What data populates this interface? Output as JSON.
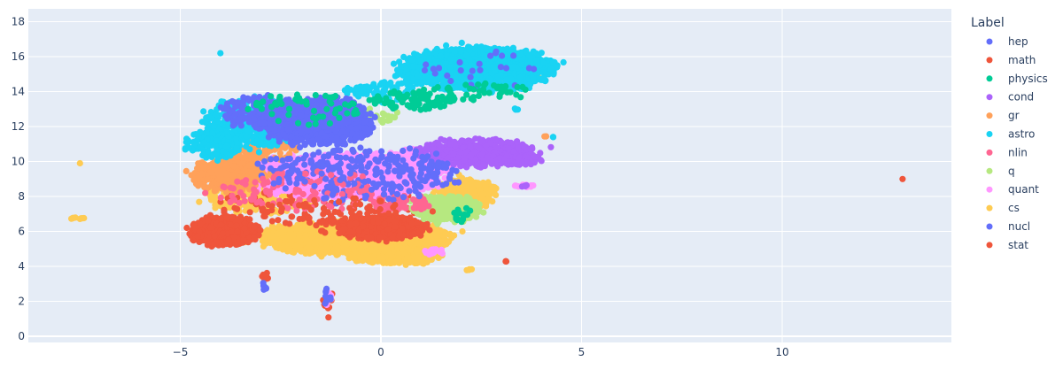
{
  "chart_data": {
    "type": "scatter",
    "title": "",
    "xlabel": "",
    "ylabel": "",
    "xlim": [
      -9.2,
      14.3
    ],
    "ylim": [
      -0.4,
      18.7
    ],
    "x_ticks": [
      -5,
      0,
      5,
      10
    ],
    "x_tick_labels": [
      "−5",
      "0",
      "5",
      "10"
    ],
    "y_ticks": [
      0,
      2,
      4,
      6,
      8,
      10,
      12,
      14,
      16,
      18
    ],
    "y_tick_labels": [
      "0",
      "2",
      "4",
      "6",
      "8",
      "10",
      "12",
      "14",
      "16",
      "18"
    ],
    "grid": true,
    "background": "#E5ECF6",
    "legend_title": "Label",
    "legend_position": "right",
    "series": [
      {
        "name": "hep",
        "color": "#636EFA",
        "clusters": [
          {
            "cx": -1.6,
            "cy": 12.3,
            "rx": 1.5,
            "ry": 1.4,
            "n": 900
          },
          {
            "cx": -3.2,
            "cy": 12.8,
            "rx": 0.8,
            "ry": 1.0,
            "n": 120
          },
          {
            "cx": -0.5,
            "cy": 9.5,
            "rx": 2.6,
            "ry": 1.4,
            "n": 220
          },
          {
            "cx": 2.5,
            "cy": 15.2,
            "rx": 1.6,
            "ry": 1.2,
            "n": 25
          },
          {
            "cx": -2.9,
            "cy": 3.0,
            "rx": 0.08,
            "ry": 0.4,
            "n": 6
          },
          {
            "cx": -1.3,
            "cy": 2.3,
            "rx": 0.15,
            "ry": 0.6,
            "n": 8
          }
        ]
      },
      {
        "name": "math",
        "color": "#EF553B",
        "clusters": [
          {
            "cx": -3.9,
            "cy": 6.0,
            "rx": 0.9,
            "ry": 0.9,
            "n": 500
          },
          {
            "cx": 0.0,
            "cy": 6.2,
            "rx": 1.1,
            "ry": 0.7,
            "n": 600
          },
          {
            "cx": -1.5,
            "cy": 7.5,
            "rx": 2.5,
            "ry": 1.5,
            "n": 120
          },
          {
            "cx": 2.4,
            "cy": 15.2,
            "rx": 1.6,
            "ry": 1.1,
            "n": 20
          },
          {
            "cx": -2.9,
            "cy": 3.4,
            "rx": 0.12,
            "ry": 0.3,
            "n": 8
          },
          {
            "cx": -1.3,
            "cy": 1.8,
            "rx": 0.15,
            "ry": 0.8,
            "n": 12
          },
          {
            "cx": 3.1,
            "cy": 4.3,
            "rx": 0.05,
            "ry": 0.03,
            "n": 3
          },
          {
            "cx": 13.0,
            "cy": 9.0,
            "rx": 0.0,
            "ry": 0.0,
            "n": 1
          }
        ]
      },
      {
        "name": "physics",
        "color": "#00CC96",
        "clusters": [
          {
            "cx": 0.8,
            "cy": 13.5,
            "rx": 1.2,
            "ry": 0.6,
            "n": 90
          },
          {
            "cx": -2.0,
            "cy": 13.0,
            "rx": 1.6,
            "ry": 1.0,
            "n": 60
          },
          {
            "cx": 2.4,
            "cy": 14.0,
            "rx": 1.5,
            "ry": 0.5,
            "n": 40
          },
          {
            "cx": 2.0,
            "cy": 7.0,
            "rx": 0.3,
            "ry": 0.5,
            "n": 15
          }
        ]
      },
      {
        "name": "cond",
        "color": "#AB63FA",
        "clusters": [
          {
            "cx": 2.4,
            "cy": 10.5,
            "rx": 1.5,
            "ry": 0.8,
            "n": 500
          },
          {
            "cx": 3.5,
            "cy": 10.1,
            "rx": 0.6,
            "ry": 0.3,
            "n": 80
          },
          {
            "cx": 3.6,
            "cy": 8.6,
            "rx": 0.2,
            "ry": 0.05,
            "n": 4
          }
        ]
      },
      {
        "name": "gr",
        "color": "#FFA15A",
        "clusters": [
          {
            "cx": -3.8,
            "cy": 9.2,
            "rx": 1.0,
            "ry": 1.0,
            "n": 350
          },
          {
            "cx": -3.0,
            "cy": 10.8,
            "rx": 1.0,
            "ry": 0.8,
            "n": 120
          },
          {
            "cx": 4.1,
            "cy": 11.4,
            "rx": 0.05,
            "ry": 0.05,
            "n": 2
          }
        ]
      },
      {
        "name": "astro",
        "color": "#19D3F3",
        "clusters": [
          {
            "cx": 2.4,
            "cy": 15.3,
            "rx": 2.0,
            "ry": 1.3,
            "n": 1400
          },
          {
            "cx": -3.2,
            "cy": 12.2,
            "rx": 1.3,
            "ry": 1.5,
            "n": 500
          },
          {
            "cx": -4.2,
            "cy": 10.9,
            "rx": 0.7,
            "ry": 0.8,
            "n": 150
          },
          {
            "cx": 0.0,
            "cy": 14.0,
            "rx": 0.9,
            "ry": 0.6,
            "n": 80
          },
          {
            "cx": -4.0,
            "cy": 16.2,
            "rx": 0.0,
            "ry": 0.0,
            "n": 1
          },
          {
            "cx": 3.4,
            "cy": 13.0,
            "rx": 0.1,
            "ry": 0.05,
            "n": 3
          },
          {
            "cx": 4.3,
            "cy": 11.4,
            "rx": 0.03,
            "ry": 0.03,
            "n": 2
          },
          {
            "cx": -2.9,
            "cy": 2.8,
            "rx": 0.05,
            "ry": 0.2,
            "n": 3
          }
        ]
      },
      {
        "name": "nlin",
        "color": "#FF6692",
        "clusters": [
          {
            "cx": -2.0,
            "cy": 8.3,
            "rx": 2.2,
            "ry": 1.2,
            "n": 120
          },
          {
            "cx": 0.5,
            "cy": 7.6,
            "rx": 0.8,
            "ry": 0.5,
            "n": 60
          }
        ]
      },
      {
        "name": "q",
        "color": "#B6E880",
        "clusters": [
          {
            "cx": 1.6,
            "cy": 7.3,
            "rx": 0.9,
            "ry": 0.8,
            "n": 400
          },
          {
            "cx": 0.0,
            "cy": 12.6,
            "rx": 0.5,
            "ry": 0.4,
            "n": 20
          }
        ]
      },
      {
        "name": "quant",
        "color": "#FF97FF",
        "clusters": [
          {
            "cx": -1.0,
            "cy": 9.2,
            "rx": 2.6,
            "ry": 1.3,
            "n": 1300
          },
          {
            "cx": 1.0,
            "cy": 10.0,
            "rx": 1.0,
            "ry": 0.8,
            "n": 300
          },
          {
            "cx": 3.6,
            "cy": 8.6,
            "rx": 0.3,
            "ry": 0.08,
            "n": 10
          },
          {
            "cx": 1.3,
            "cy": 4.8,
            "rx": 0.3,
            "ry": 0.2,
            "n": 15
          },
          {
            "cx": -1.3,
            "cy": 2.2,
            "rx": 0.12,
            "ry": 0.6,
            "n": 8
          }
        ]
      },
      {
        "name": "cs",
        "color": "#FECB52",
        "clusters": [
          {
            "cx": -0.6,
            "cy": 5.6,
            "rx": 2.5,
            "ry": 1.0,
            "n": 1500
          },
          {
            "cx": 0.4,
            "cy": 4.6,
            "rx": 1.2,
            "ry": 0.5,
            "n": 400
          },
          {
            "cx": 2.1,
            "cy": 8.2,
            "rx": 0.8,
            "ry": 0.9,
            "n": 250
          },
          {
            "cx": -3.0,
            "cy": 8.0,
            "rx": 1.5,
            "ry": 1.0,
            "n": 200
          },
          {
            "cx": -7.6,
            "cy": 6.75,
            "rx": 0.2,
            "ry": 0.05,
            "n": 8
          },
          {
            "cx": -7.5,
            "cy": 9.9,
            "rx": 0.0,
            "ry": 0.0,
            "n": 1
          },
          {
            "cx": 2.2,
            "cy": 3.8,
            "rx": 0.1,
            "ry": 0.05,
            "n": 4
          },
          {
            "cx": 2.5,
            "cy": 15.0,
            "rx": 1.5,
            "ry": 1.0,
            "n": 30
          }
        ]
      },
      {
        "name": "nucl",
        "color": "#636EFA",
        "clusters": [
          {
            "cx": -0.5,
            "cy": 9.0,
            "rx": 2.5,
            "ry": 1.5,
            "n": 80
          }
        ]
      },
      {
        "name": "stat",
        "color": "#EF553B",
        "clusters": [
          {
            "cx": -1.0,
            "cy": 7.0,
            "rx": 2.5,
            "ry": 1.0,
            "n": 60
          }
        ]
      }
    ]
  }
}
